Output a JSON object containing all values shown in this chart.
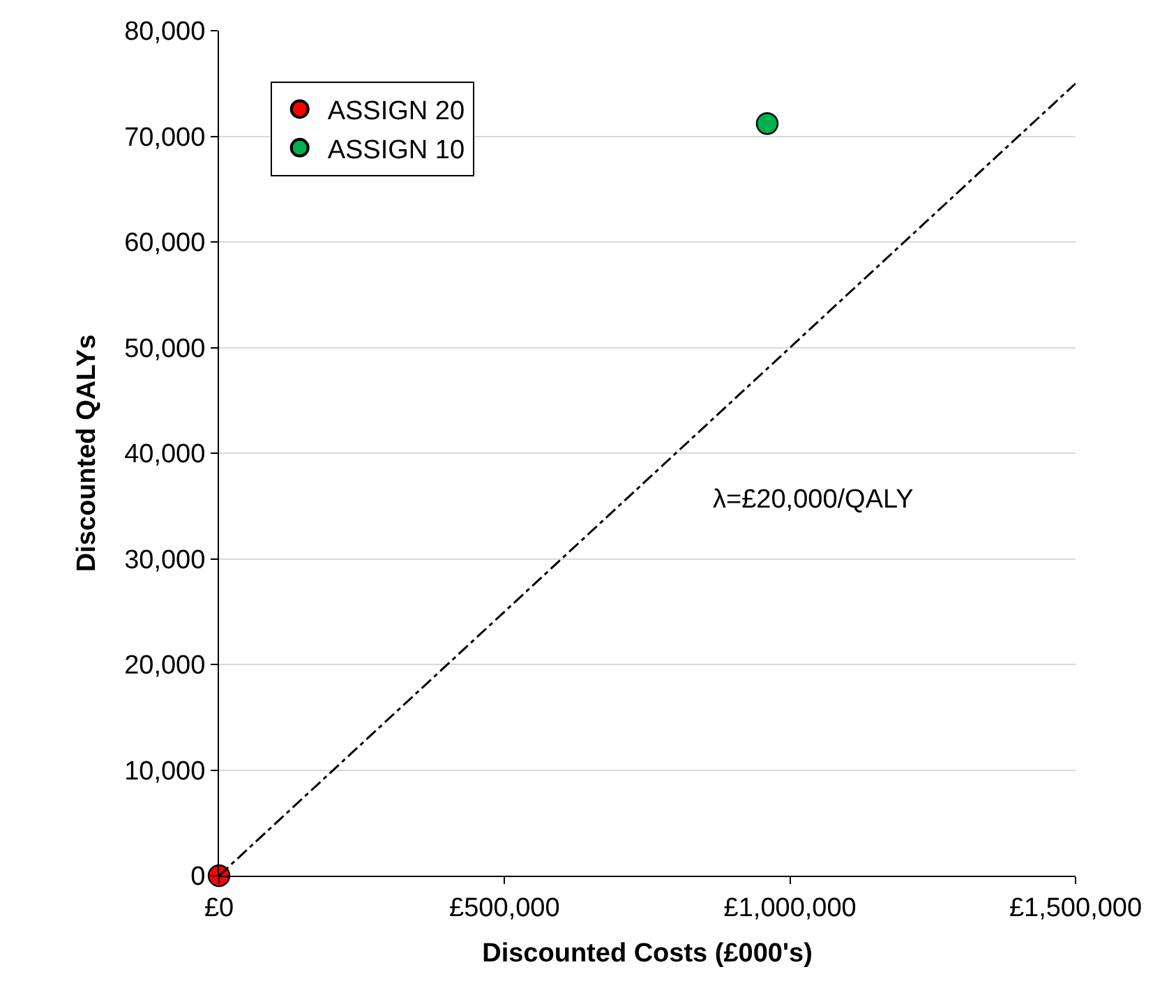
{
  "chart_data": {
    "type": "scatter",
    "xlabel": "Discounted Costs (£000's)",
    "ylabel": "Discounted QALYs",
    "xlim": [
      0,
      1500000
    ],
    "ylim": [
      0,
      80000
    ],
    "xticks": [
      {
        "value": 0,
        "label": "£0"
      },
      {
        "value": 500000,
        "label": "£500,000"
      },
      {
        "value": 1000000,
        "label": "£1,000,000"
      },
      {
        "value": 1500000,
        "label": "£1,500,000"
      }
    ],
    "yticks": [
      {
        "value": 0,
        "label": "0"
      },
      {
        "value": 10000,
        "label": "10,000"
      },
      {
        "value": 20000,
        "label": "20,000"
      },
      {
        "value": 30000,
        "label": "30,000"
      },
      {
        "value": 40000,
        "label": "40,000"
      },
      {
        "value": 50000,
        "label": "50,000"
      },
      {
        "value": 60000,
        "label": "60,000"
      },
      {
        "value": 70000,
        "label": "70,000"
      },
      {
        "value": 80000,
        "label": "80,000"
      }
    ],
    "series": [
      {
        "name": "ASSIGN 20",
        "color": "#ff0000",
        "x": [
          0
        ],
        "values": [
          0
        ]
      },
      {
        "name": "ASSIGN 10",
        "color": "#00b050",
        "x": [
          960000
        ],
        "values": [
          71200
        ]
      },
      {
        "type": "line",
        "color": "#000000",
        "x": [
          0,
          1500000
        ],
        "values": [
          0,
          75000
        ],
        "line_style": "dashdot",
        "marker": "none"
      }
    ],
    "annotations": [
      "λ=£20,000/QALY"
    ],
    "grid": "y",
    "legend": "top left",
    "marker": "circle"
  }
}
